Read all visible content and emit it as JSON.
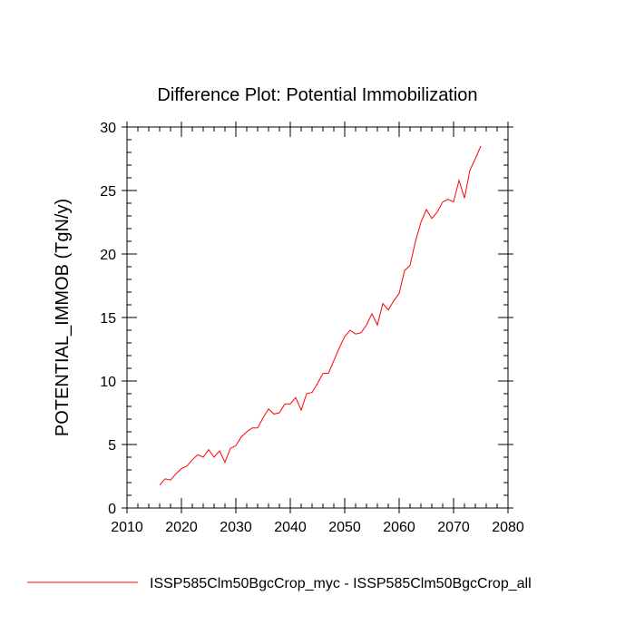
{
  "chart_data": {
    "type": "line",
    "title": "Difference Plot: Potential Immobilization",
    "xlabel": "",
    "ylabel": "POTENTIAL_IMMOB  (TgN/y)",
    "xlim": [
      2010,
      2080
    ],
    "ylim": [
      0,
      30
    ],
    "xticks": [
      2010,
      2020,
      2030,
      2040,
      2050,
      2060,
      2070,
      2080
    ],
    "yticks": [
      0,
      5,
      10,
      15,
      20,
      25,
      30
    ],
    "x_minor_step": 2,
    "y_minor_step": 1,
    "grid": false,
    "legend_position": "bottom",
    "series": [
      {
        "name": "ISSP585Clm50BgcCrop_myc - ISSP585Clm50BgcCrop_all",
        "color": "#ff0000",
        "x": [
          2016,
          2017,
          2018,
          2019,
          2020,
          2021,
          2022,
          2023,
          2024,
          2025,
          2026,
          2027,
          2028,
          2029,
          2030,
          2031,
          2032,
          2033,
          2034,
          2035,
          2036,
          2037,
          2038,
          2039,
          2040,
          2041,
          2042,
          2043,
          2044,
          2045,
          2046,
          2047,
          2048,
          2049,
          2050,
          2051,
          2052,
          2053,
          2054,
          2055,
          2056,
          2057,
          2058,
          2059,
          2060,
          2061,
          2062,
          2063,
          2064,
          2065,
          2066,
          2067,
          2068,
          2069,
          2070,
          2071,
          2072,
          2073,
          2074,
          2075
        ],
        "y": [
          1.8,
          2.3,
          2.2,
          2.7,
          3.1,
          3.3,
          3.8,
          4.2,
          4.0,
          4.6,
          4.0,
          4.5,
          3.6,
          4.7,
          4.9,
          5.6,
          6.0,
          6.3,
          6.3,
          7.1,
          7.8,
          7.4,
          7.5,
          8.2,
          8.2,
          8.7,
          7.7,
          9.0,
          9.1,
          9.8,
          10.6,
          10.6,
          11.6,
          12.6,
          13.5,
          14.0,
          13.7,
          13.8,
          14.4,
          15.3,
          14.4,
          16.1,
          15.6,
          16.3,
          16.9,
          18.7,
          19.1,
          21.0,
          22.5,
          23.5,
          22.8,
          23.3,
          24.1,
          24.3,
          24.1,
          25.8,
          24.4,
          26.6,
          27.5,
          28.5
        ]
      }
    ]
  }
}
